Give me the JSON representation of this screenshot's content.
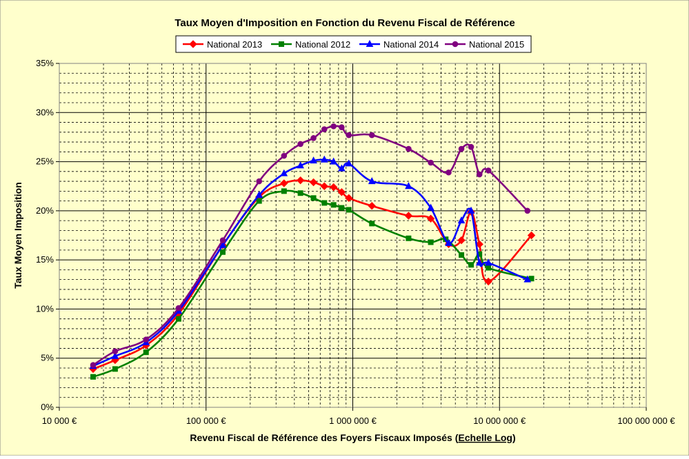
{
  "colors": {
    "background": "#FFFFCC",
    "plot_background": "#FFFFCC",
    "grid_major": "#000000",
    "grid_minor": "#000000"
  },
  "chart_data": {
    "type": "line",
    "title": "Taux Moyen d'Imposition en Fonction du Revenu Fiscal de Référence",
    "xlabel_prefix": "Revenu Fiscal de Référence des Foyers Fiscaux Imposés (",
    "xlabel_link": "Echelle Log",
    "xlabel_suffix": ")",
    "ylabel": "Taux Moyen Imposition",
    "x_scale": "log",
    "xlim": [
      10000,
      100000000
    ],
    "ylim": [
      0,
      35
    ],
    "x_ticks": [
      {
        "value": 10000,
        "label": "10 000 €"
      },
      {
        "value": 100000,
        "label": "100 000 €"
      },
      {
        "value": 1000000,
        "label": "1 000 000 €"
      },
      {
        "value": 10000000,
        "label": "10 000 000 €"
      },
      {
        "value": 100000000,
        "label": "100 000 000 €"
      }
    ],
    "y_ticks": [
      {
        "value": 0,
        "label": "0%"
      },
      {
        "value": 5,
        "label": "5%"
      },
      {
        "value": 10,
        "label": "10%"
      },
      {
        "value": 15,
        "label": "15%"
      },
      {
        "value": 20,
        "label": "20%"
      },
      {
        "value": 25,
        "label": "25%"
      },
      {
        "value": 30,
        "label": "30%"
      },
      {
        "value": 35,
        "label": "35%"
      }
    ],
    "grid": true,
    "legend_position": "top",
    "series": [
      {
        "name": "National 2013",
        "color": "#FF0000",
        "marker": "diamond",
        "x": [
          17000,
          24000,
          39000,
          65000,
          130000,
          230000,
          340000,
          440000,
          540000,
          640000,
          740000,
          840000,
          940000,
          1350000,
          2400000,
          3400000,
          4500000,
          5500000,
          6400000,
          7300000,
          8400000,
          16500000
        ],
        "y": [
          3.9,
          4.8,
          6.3,
          9.5,
          16.5,
          21.4,
          22.8,
          23.1,
          22.9,
          22.5,
          22.4,
          21.9,
          21.3,
          20.5,
          19.5,
          19.2,
          16.6,
          17.0,
          19.9,
          16.6,
          12.8,
          17.5
        ]
      },
      {
        "name": "National 2012",
        "color": "#008000",
        "marker": "square",
        "x": [
          17000,
          24000,
          39000,
          65000,
          130000,
          230000,
          340000,
          440000,
          540000,
          640000,
          740000,
          840000,
          940000,
          1350000,
          2400000,
          3400000,
          4300000,
          5500000,
          6400000,
          7300000,
          8400000,
          16500000
        ],
        "y": [
          3.1,
          3.9,
          5.6,
          9.0,
          15.8,
          21.0,
          22.0,
          21.8,
          21.3,
          20.8,
          20.6,
          20.3,
          20.1,
          18.7,
          17.2,
          16.8,
          17.1,
          15.5,
          14.5,
          15.6,
          14.2,
          13.1
        ]
      },
      {
        "name": "National 2014",
        "color": "#0000FF",
        "marker": "triangle",
        "x": [
          17000,
          24000,
          39000,
          65000,
          130000,
          230000,
          340000,
          440000,
          540000,
          640000,
          740000,
          840000,
          940000,
          1350000,
          2400000,
          3400000,
          4500000,
          5500000,
          6400000,
          7300000,
          8400000,
          15500000
        ],
        "y": [
          4.2,
          5.2,
          6.6,
          9.8,
          16.5,
          21.6,
          23.8,
          24.6,
          25.1,
          25.2,
          25.0,
          24.3,
          24.8,
          23.0,
          22.5,
          20.3,
          16.7,
          19.0,
          20.0,
          14.7,
          14.7,
          13.0
        ]
      },
      {
        "name": "National 2015",
        "color": "#800080",
        "marker": "circle",
        "x": [
          17000,
          24000,
          39000,
          65000,
          130000,
          230000,
          340000,
          440000,
          540000,
          640000,
          740000,
          840000,
          940000,
          1350000,
          2400000,
          3400000,
          4500000,
          5500000,
          6400000,
          7300000,
          8400000,
          15500000
        ],
        "y": [
          4.3,
          5.7,
          6.9,
          10.1,
          17.0,
          23.0,
          25.6,
          26.8,
          27.4,
          28.3,
          28.6,
          28.5,
          27.7,
          27.7,
          26.3,
          24.9,
          23.9,
          26.3,
          26.5,
          23.7,
          24.1,
          20.0
        ]
      }
    ]
  }
}
